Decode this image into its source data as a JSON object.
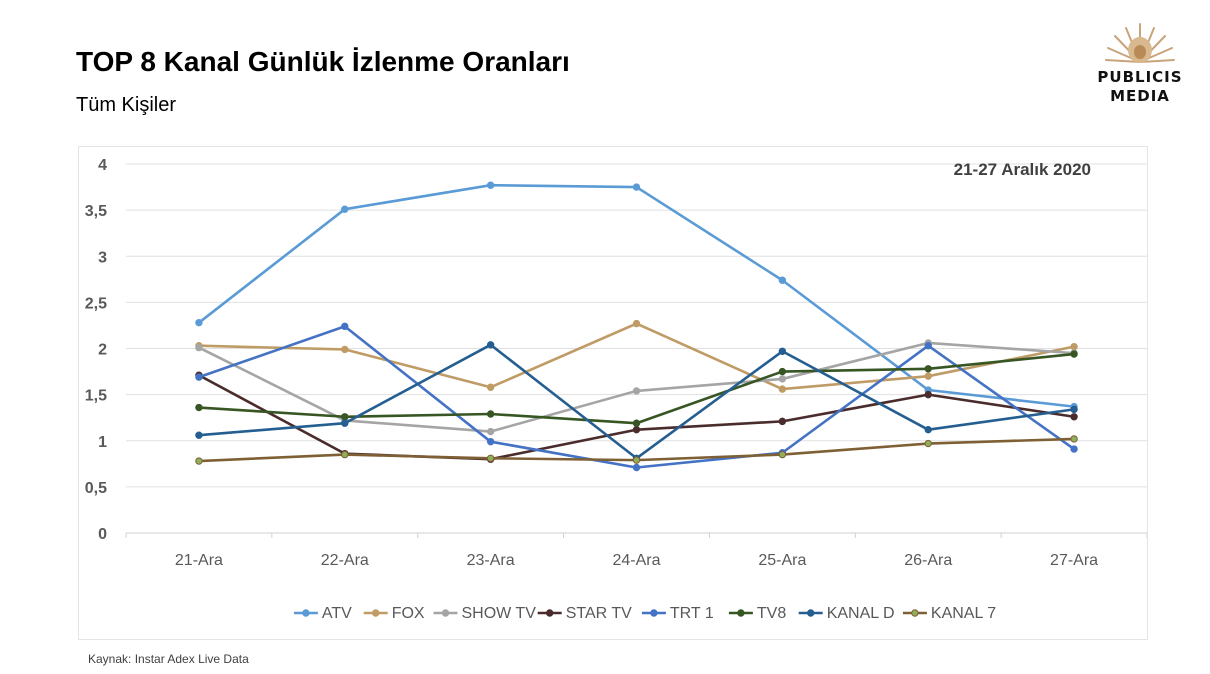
{
  "header": {
    "title": "TOP 8 Kanal Günlük İzlenme Oranları",
    "subtitle": "Tüm Kişiler"
  },
  "logo": {
    "line1": "PUBLICIS",
    "line2": "MEDIA",
    "icon": "lion-head-icon",
    "color": "#c9a47a"
  },
  "footer": {
    "source": "Kaynak: Instar  Adex Live Data"
  },
  "chart_data": {
    "type": "line",
    "title": "",
    "annotation": "21-27 Aralık 2020",
    "xlabel": "",
    "ylabel": "",
    "categories": [
      "21-Ara",
      "22-Ara",
      "23-Ara",
      "24-Ara",
      "25-Ara",
      "26-Ara",
      "27-Ara"
    ],
    "ylim": [
      0,
      4
    ],
    "yticks": [
      "0",
      "0,5",
      "1",
      "1,5",
      "2",
      "2,5",
      "3",
      "3,5",
      "4"
    ],
    "grid": true,
    "legend_position": "bottom",
    "series": [
      {
        "name": "ATV",
        "color": "#5b9bd5",
        "values": [
          2.28,
          3.51,
          3.77,
          3.75,
          2.74,
          1.55,
          1.37
        ]
      },
      {
        "name": "FOX",
        "color": "#bf9b66",
        "values": [
          2.03,
          1.99,
          1.58,
          2.27,
          1.56,
          1.7,
          2.02
        ]
      },
      {
        "name": "SHOW TV",
        "color": "#a5a5a5",
        "values": [
          2.01,
          1.22,
          1.1,
          1.54,
          1.67,
          2.06,
          1.95
        ]
      },
      {
        "name": "STAR TV",
        "color": "#4b2c2c",
        "values": [
          1.71,
          0.86,
          0.8,
          1.12,
          1.21,
          1.5,
          1.26
        ]
      },
      {
        "name": "TRT 1",
        "color": "#4472c4",
        "values": [
          1.69,
          2.24,
          0.99,
          0.71,
          0.87,
          2.03,
          0.91
        ]
      },
      {
        "name": "TV8",
        "color": "#375623",
        "values": [
          1.36,
          1.26,
          1.29,
          1.19,
          1.75,
          1.78,
          1.94
        ]
      },
      {
        "name": "KANAL D",
        "color": "#255e91",
        "values": [
          1.06,
          1.19,
          2.04,
          0.81,
          1.97,
          1.12,
          1.34
        ]
      },
      {
        "name": "KANAL 7",
        "color": "#7f6035",
        "marker_color": "#8fae5a",
        "values": [
          0.78,
          0.85,
          0.81,
          0.79,
          0.85,
          0.97,
          1.02
        ]
      }
    ]
  }
}
